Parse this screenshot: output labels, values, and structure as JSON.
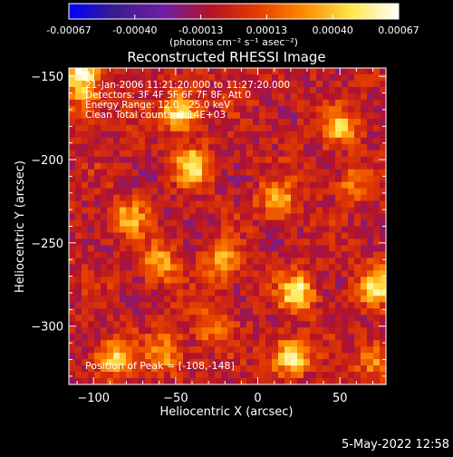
{
  "colorbar": {
    "ticks": [
      "-0.00067",
      "-0.00040",
      "-0.00013",
      "0.00013",
      "0.00040",
      "0.00067"
    ],
    "unit_label": "(photons cm⁻² s⁻¹ asec⁻²)",
    "stops": [
      "#0000ff",
      "#3c1c8c",
      "#6d1fa6",
      "#b3122a",
      "#e43b00",
      "#ff8b00",
      "#ffe64a",
      "#ffffff"
    ]
  },
  "chart_data": {
    "type": "heatmap",
    "title": "Reconstructed RHESSI Image",
    "xlabel": "Heliocentric X (arcsec)",
    "ylabel": "Heliocentric Y (arcsec)",
    "xlim": [
      -115,
      78
    ],
    "ylim": [
      -335,
      -145
    ],
    "x_ticks": [
      -100,
      -50,
      0,
      50
    ],
    "y_ticks": [
      -150,
      -200,
      -250,
      -300
    ],
    "x_tick_labels": [
      "−100",
      "−50",
      "0",
      "50"
    ],
    "y_tick_labels": [
      "−150",
      "−200",
      "−250",
      "−300"
    ],
    "clim": [
      -0.00067,
      0.00067
    ],
    "annotations": [
      "21-Jan-2006 11:21:20.000 to 11:27:20.000",
      "Detectors: 3F 4F 5F 6F 7F 8F, Att 0",
      "Energy Range: 12.0 - 25.0 keV",
      "Clean     Total counts: 3.14E+03"
    ],
    "peak_label": "Position of Peak = [-108,-148]",
    "peak": [
      -108,
      -148
    ],
    "sources": [
      {
        "x": -47,
        "y": -172,
        "v": 0.00067
      },
      {
        "x": -40,
        "y": -204,
        "v": 0.00058
      },
      {
        "x": -78,
        "y": -235,
        "v": 0.0004
      },
      {
        "x": -60,
        "y": -262,
        "v": 0.00045
      },
      {
        "x": -22,
        "y": -262,
        "v": 0.00042
      },
      {
        "x": 12,
        "y": -224,
        "v": 0.00044
      },
      {
        "x": 24,
        "y": -280,
        "v": 0.00062
      },
      {
        "x": 20,
        "y": -318,
        "v": 0.00067
      },
      {
        "x": -88,
        "y": -318,
        "v": 0.00052
      },
      {
        "x": -56,
        "y": -316,
        "v": 0.0004
      },
      {
        "x": 72,
        "y": -276,
        "v": 0.00055
      },
      {
        "x": 50,
        "y": -180,
        "v": 0.00048
      },
      {
        "x": -108,
        "y": -148,
        "v": 0.00067
      },
      {
        "x": -105,
        "y": -165,
        "v": 0.0003
      },
      {
        "x": -30,
        "y": -300,
        "v": 0.0003
      },
      {
        "x": 58,
        "y": -215,
        "v": 0.00025
      },
      {
        "x": 70,
        "y": -320,
        "v": 0.00035
      }
    ]
  },
  "footer": {
    "date": "5-May-2022 12:58"
  }
}
